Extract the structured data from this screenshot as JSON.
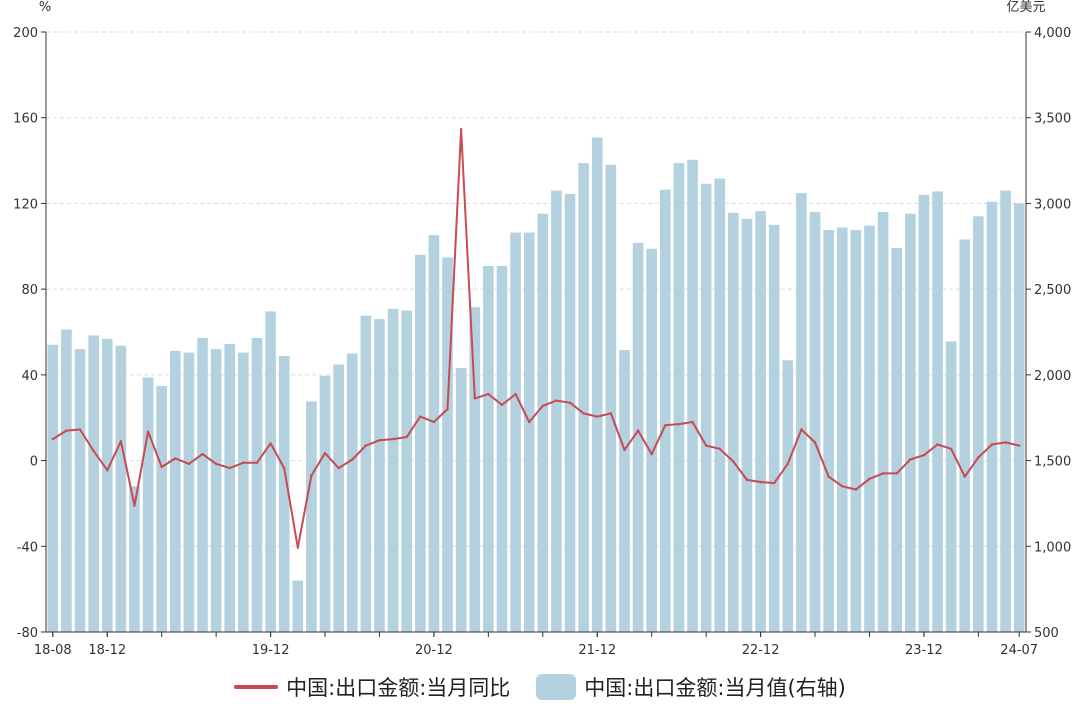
{
  "colors": {
    "line": "#c64b54",
    "bar": "#b3d1de",
    "grid": "#dddddd",
    "axis": "#333333"
  },
  "chart_data": {
    "type": "bar",
    "left_unit": "%",
    "right_unit": "亿美元",
    "x_tick_labels": [
      "18-08",
      "18-12",
      "19-12",
      "20-12",
      "21-12",
      "22-12",
      "23-12",
      "24-07"
    ],
    "x_tick_months": [
      "2018-08",
      "2018-12",
      "2019-12",
      "2020-12",
      "2021-12",
      "2022-12",
      "2023-12",
      "2024-07"
    ],
    "left_axis": {
      "ylim": [
        -80,
        200
      ],
      "ticks": [
        -80,
        -40,
        0,
        40,
        80,
        120,
        160,
        200
      ],
      "tick_labels": [
        "-80",
        "-40",
        "0",
        "40",
        "80",
        "120",
        "160",
        "200"
      ]
    },
    "right_axis": {
      "ylim": [
        500,
        4000
      ],
      "ticks": [
        500,
        1000,
        1500,
        2000,
        2500,
        3000,
        3500,
        4000
      ],
      "tick_labels": [
        "500",
        "1,000",
        "1,500",
        "2,000",
        "2,500",
        "3,000",
        "3,500",
        "4,000"
      ]
    },
    "grid": "horizontal dashed",
    "legend_position": "bottom",
    "months": [
      "2018-08",
      "2018-09",
      "2018-10",
      "2018-11",
      "2018-12",
      "2019-01",
      "2019-02",
      "2019-03",
      "2019-04",
      "2019-05",
      "2019-06",
      "2019-07",
      "2019-08",
      "2019-09",
      "2019-10",
      "2019-11",
      "2019-12",
      "2020-01",
      "2020-02",
      "2020-03",
      "2020-04",
      "2020-05",
      "2020-06",
      "2020-07",
      "2020-08",
      "2020-09",
      "2020-10",
      "2020-11",
      "2020-12",
      "2021-01",
      "2021-02",
      "2021-03",
      "2021-04",
      "2021-05",
      "2021-06",
      "2021-07",
      "2021-08",
      "2021-09",
      "2021-10",
      "2021-11",
      "2021-12",
      "2022-01",
      "2022-02",
      "2022-03",
      "2022-04",
      "2022-05",
      "2022-06",
      "2022-07",
      "2022-08",
      "2022-09",
      "2022-10",
      "2022-11",
      "2022-12",
      "2023-01",
      "2023-02",
      "2023-03",
      "2023-04",
      "2023-05",
      "2023-06",
      "2023-07",
      "2023-08",
      "2023-09",
      "2023-10",
      "2023-11",
      "2023-12",
      "2024-01",
      "2024-02",
      "2024-03",
      "2024-04",
      "2024-05",
      "2024-06",
      "2024-07"
    ],
    "series": [
      {
        "name": "中国:出口金额:当月值(右轴)",
        "type": "bar",
        "axis": "right",
        "values": [
          2175,
          2265,
          2150,
          2230,
          2210,
          2170,
          1350,
          1985,
          1935,
          2140,
          2130,
          2215,
          2150,
          2180,
          2130,
          2215,
          2370,
          2110,
          800,
          1845,
          1995,
          2060,
          2125,
          2345,
          2325,
          2385,
          2375,
          2700,
          2815,
          2685,
          2040,
          2395,
          2635,
          2635,
          2830,
          2830,
          2940,
          3075,
          3055,
          3235,
          3385,
          3225,
          2145,
          2770,
          2735,
          3080,
          3235,
          3255,
          3115,
          3145,
          2945,
          2910,
          2955,
          2875,
          2085,
          3060,
          2950,
          2845,
          2860,
          2845,
          2870,
          2950,
          2740,
          2940,
          3050,
          3070,
          2195,
          2790,
          2925,
          3010,
          3075,
          3000
        ]
      },
      {
        "name": "中国:出口金额:当月同比",
        "type": "line",
        "axis": "left",
        "values": [
          10,
          14,
          14.5,
          4.5,
          -4.5,
          9,
          -21,
          13.5,
          -3,
          1,
          -1.5,
          3,
          -1.5,
          -3.5,
          -1,
          -1,
          8,
          -3.5,
          -40.6,
          -7,
          3.5,
          -3.5,
          0.5,
          7,
          9.5,
          10,
          11,
          20.5,
          18,
          24,
          154.6,
          29,
          31,
          26,
          31,
          18,
          25.5,
          28,
          27,
          22,
          20.5,
          22,
          5,
          14,
          3,
          16.5,
          17,
          18,
          7,
          5.5,
          -0.5,
          -9,
          -10,
          -10.5,
          -1.5,
          14.5,
          8.5,
          -7.5,
          -12,
          -13.5,
          -8.5,
          -6,
          -6,
          0.5,
          2.5,
          7.5,
          5.5,
          -7.5,
          1.5,
          7.5,
          8.5,
          7
        ]
      }
    ]
  },
  "legend": {
    "line_label": "中国:出口金额:当月同比",
    "bar_label": "中国:出口金额:当月值(右轴)"
  }
}
